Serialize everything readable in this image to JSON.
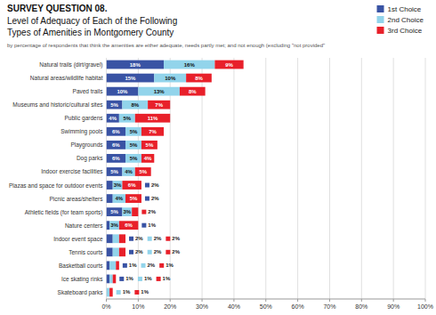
{
  "chart_data": {
    "type": "bar",
    "orientation": "horizontal",
    "stacked": true,
    "data_labels": true,
    "grid": true,
    "legend": "top-right",
    "annotations": [
      "SURVEY QUESTION 08."
    ],
    "title": "Level of Adequacy of Each of the Following\nTypes of Amenities in Montgomery County",
    "subtitle": "by percentage of respondents that think the amenities are either adequate, needs partly met; and not enough (excluding \"not provided\"",
    "categories": [
      "Natural trails (dirt/gravel)",
      "Natural areas/wildlife habitat",
      "Paved trails",
      "Museums and historic/cultural sites",
      "Public gardens",
      "Swimming pools",
      "Playgrounds",
      "Dog parks",
      "Indoor exercise facilities",
      "Plazas and space for outdoor events",
      "Picnic areas/shelters",
      "Athletic fields (for team sports)",
      "Nature centers",
      "Indoor event space",
      "Tennis courts",
      "Basketball courts",
      "Ice skating rinks",
      "Skateboard parks"
    ],
    "series": [
      {
        "name": "1st Choice",
        "color": "#3953a4",
        "values": [
          18,
          15,
          10,
          5,
          4,
          6,
          6,
          6,
          5,
          2,
          2,
          5,
          1,
          2,
          2,
          1,
          1,
          0
        ],
        "value_labels": [
          "18%",
          "15%",
          "10%",
          "5%",
          "4%",
          "6%",
          "6%",
          "6%",
          "5%",
          "2%",
          "2%",
          "5%",
          "1%",
          "2%",
          "2%",
          "1%",
          "1%",
          null
        ]
      },
      {
        "name": "2nd Choice",
        "color": "#92d4eb",
        "values": [
          16,
          10,
          13,
          8,
          5,
          5,
          5,
          5,
          4,
          3,
          4,
          3,
          3,
          2,
          2,
          2,
          1,
          1
        ],
        "value_labels": [
          "16%",
          "10%",
          "13%",
          "8%",
          "5%",
          "5%",
          "5%",
          "5%",
          "4%",
          "3%",
          "4%",
          "3%",
          "3%",
          "2%",
          "2%",
          "2%",
          "1%",
          "1%"
        ]
      },
      {
        "name": "3rd Choice",
        "color": "#e8202a",
        "values": [
          9,
          8,
          8,
          7,
          11,
          7,
          5,
          4,
          5,
          6,
          5,
          2,
          6,
          2,
          2,
          1,
          1,
          1
        ],
        "value_labels": [
          "9%",
          "8%",
          "8%",
          "7%",
          "11%",
          "7%",
          "5%",
          "4%",
          "5%",
          "6%",
          "5%",
          "2%",
          "6%",
          "2%",
          "2%",
          "1%",
          "1%",
          "1%"
        ]
      }
    ],
    "xlim": [
      0,
      100
    ],
    "xticks": [
      {
        "value": 0,
        "label": "0%"
      },
      {
        "value": 10,
        "label": "10%"
      },
      {
        "value": 20,
        "label": "20%"
      },
      {
        "value": 30,
        "label": "30%"
      },
      {
        "value": 40,
        "label": "40%"
      },
      {
        "value": 50,
        "label": "50%"
      },
      {
        "value": 60,
        "label": "60%"
      },
      {
        "value": 70,
        "label": "70%"
      },
      {
        "value": 80,
        "label": "80%"
      },
      {
        "value": 90,
        "label": "90%"
      },
      {
        "value": 100,
        "label": "100%"
      }
    ]
  }
}
